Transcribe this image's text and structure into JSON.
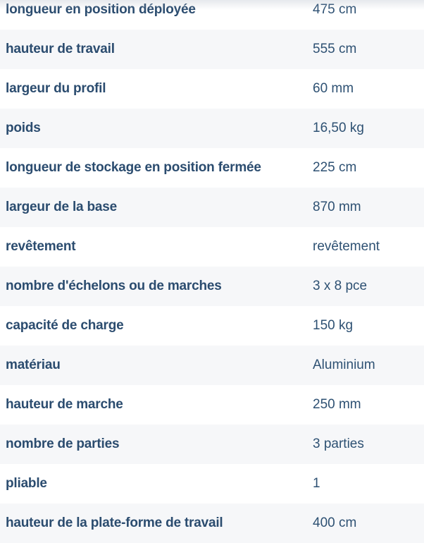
{
  "spec_table": {
    "rows": [
      {
        "label": "longueur en position déployée",
        "value": "475 cm"
      },
      {
        "label": "hauteur de travail",
        "value": "555 cm"
      },
      {
        "label": "largeur du profil",
        "value": "60 mm"
      },
      {
        "label": "poids",
        "value": "16,50 kg"
      },
      {
        "label": "longueur de stockage en position fermée",
        "value": "225 cm"
      },
      {
        "label": "largeur de la base",
        "value": "870 mm"
      },
      {
        "label": "revêtement",
        "value": "revêtement"
      },
      {
        "label": "nombre d'échelons ou de marches",
        "value": "3 x 8 pce"
      },
      {
        "label": "capacité de charge",
        "value": "150 kg"
      },
      {
        "label": "matériau",
        "value": "Aluminium"
      },
      {
        "label": "hauteur de marche",
        "value": "250 mm"
      },
      {
        "label": "nombre de parties",
        "value": "3 parties"
      },
      {
        "label": "pliable",
        "value": "1"
      },
      {
        "label": "hauteur de la plate-forme de travail",
        "value": "400 cm"
      }
    ],
    "colors": {
      "label_text": "#2b4c6f",
      "value_text": "#2e5173",
      "row_bg": "#ffffff",
      "alt_row_bg": "#f6f7f9"
    }
  }
}
